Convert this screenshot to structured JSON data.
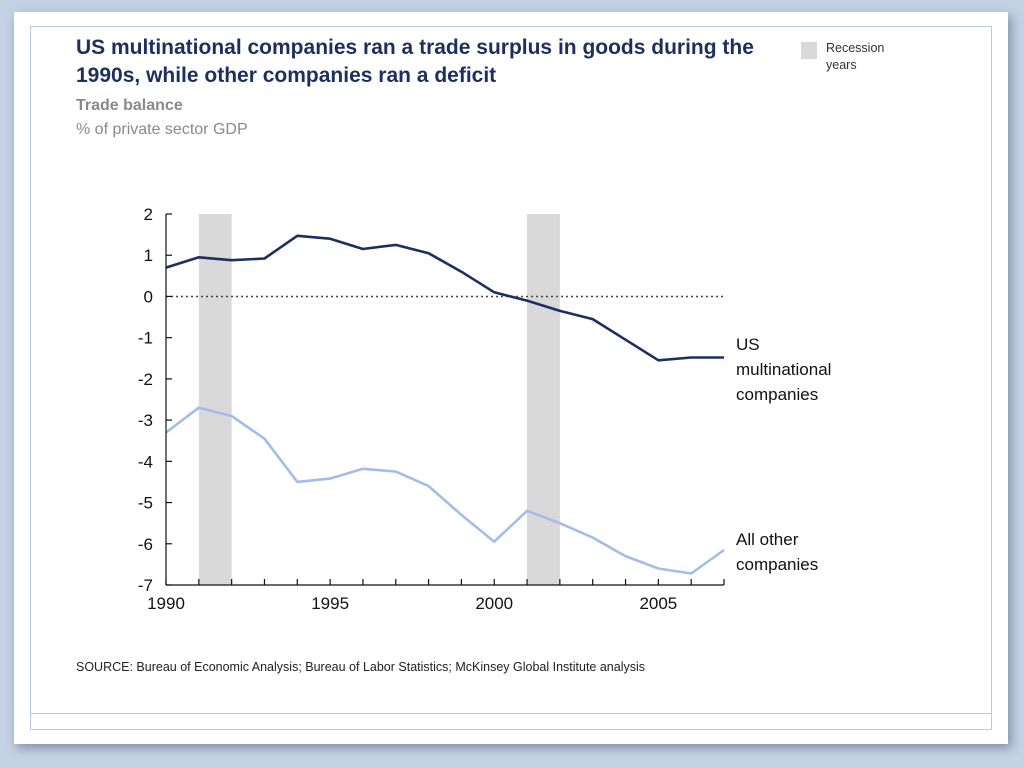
{
  "title": "US multinational companies ran a trade surplus in goods during the 1990s, while other companies ran a deficit",
  "subtitle": "Trade balance",
  "units": "% of private sector GDP",
  "legend": {
    "recession_label": "Recession years"
  },
  "source": "SOURCE: Bureau of Economic Analysis; Bureau of Labor Statistics; McKinsey Global Institute analysis",
  "colors": {
    "us_multinational": "#1c2f5f",
    "all_other": "#a3bde9",
    "recession": "#d9d9d9"
  },
  "chart_data": {
    "type": "line",
    "title": "US multinational companies ran a trade surplus in goods during the 1990s, while other companies ran a deficit",
    "ylabel": "% of private sector GDP",
    "xlim": [
      1990,
      2007
    ],
    "ylim": [
      -7,
      2
    ],
    "yticks": [
      2,
      1,
      0,
      -1,
      -2,
      -3,
      -4,
      -5,
      -6,
      -7
    ],
    "xticks": [
      1990,
      1995,
      2000,
      2005
    ],
    "x": [
      1990,
      1991,
      1992,
      1993,
      1994,
      1995,
      1996,
      1997,
      1998,
      1999,
      2000,
      2001,
      2002,
      2003,
      2004,
      2005,
      2006,
      2007
    ],
    "series": [
      {
        "name": "US multinational companies",
        "label_lines": [
          "US",
          "multinational",
          "companies"
        ],
        "values": [
          0.7,
          0.95,
          0.88,
          0.92,
          1.47,
          1.4,
          1.15,
          1.25,
          1.05,
          0.6,
          0.1,
          -0.1,
          -0.35,
          -0.55,
          -1.05,
          -1.55,
          -1.48,
          -1.48
        ]
      },
      {
        "name": "All other companies",
        "label_lines": [
          "All other",
          "companies"
        ],
        "values": [
          -3.3,
          -2.7,
          -2.9,
          -3.45,
          -4.5,
          -4.42,
          -4.18,
          -4.25,
          -4.6,
          -5.3,
          -5.95,
          -5.2,
          -5.5,
          -5.85,
          -6.3,
          -6.6,
          -6.72,
          -6.15
        ]
      }
    ],
    "recessions": [
      [
        1991,
        1992
      ],
      [
        2001,
        2002
      ]
    ],
    "zero_line": "dotted"
  }
}
